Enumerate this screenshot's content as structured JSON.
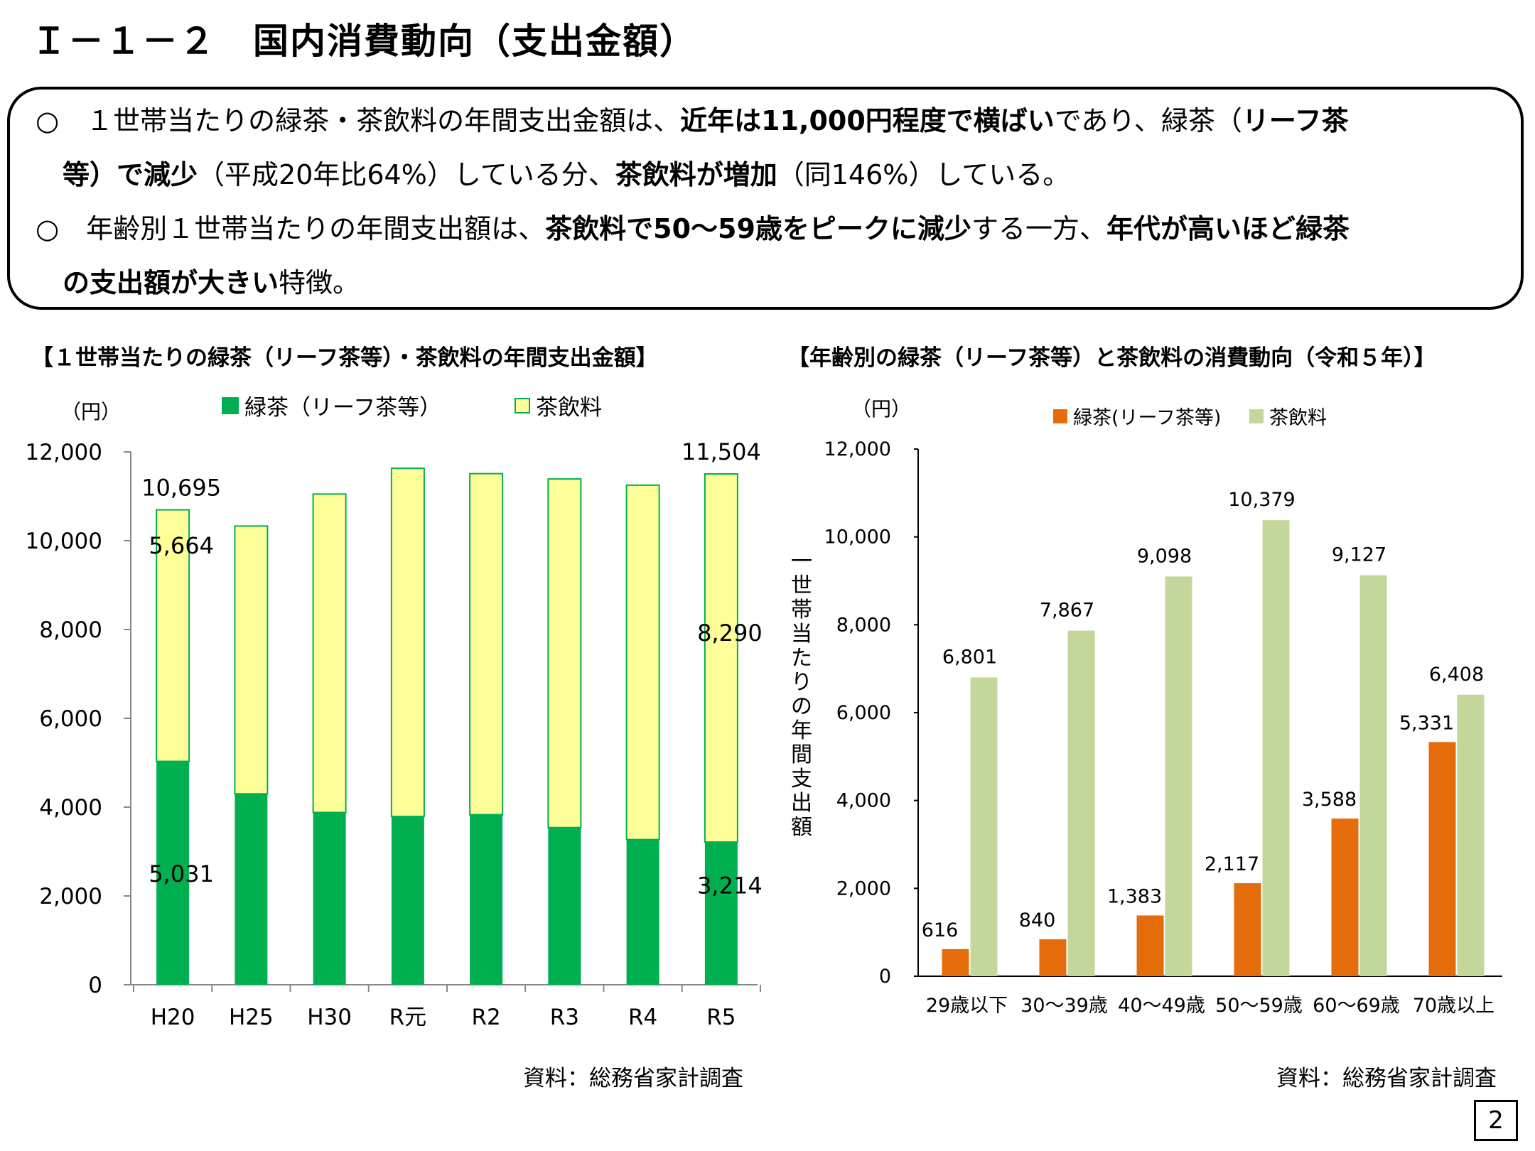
{
  "header": {
    "title": "Ｉ－１－２　国内消費動向（支出金額）"
  },
  "summary": {
    "line1": {
      "p1": "○　１世帯当たりの緑茶・茶飲料の年間支出金額は、",
      "b1": "近年は11,000円程度で横ばい",
      "p2": "であり、緑茶（",
      "b2": "リーフ茶"
    },
    "line2": {
      "b1": "等）で減少",
      "p1": "（平成20年比64%）している分、",
      "b2": "茶飲料が増加",
      "p2": "（同146%）している。"
    },
    "line3": {
      "p1": "○　年齢別１世帯当たりの年間支出額は、",
      "b1": "茶飲料で50～59歳をピークに減少",
      "p2": "する一方、",
      "b2": "年代が高いほど緑茶"
    },
    "line4": {
      "b1": "の支出額が大きい",
      "p1": "特徴。"
    }
  },
  "left_chart": {
    "panel_title": "【１世帯当たりの緑茶（リーフ茶等）・茶飲料の年間支出金額】",
    "unit": "（円）",
    "source": "資料：総務省家計調査"
  },
  "right_chart": {
    "panel_title": "【年齢別の緑茶（リーフ茶等）と茶飲料の消費動向（令和５年）】",
    "unit": "（円）",
    "source": "資料：総務省家計調査",
    "y_title": "一世帯当たりの年間支出額"
  },
  "footer": {
    "page_number": "2"
  },
  "chart_data": [
    {
      "type": "bar",
      "stacked": true,
      "title": "【１世帯当たりの緑茶（リーフ茶等）・茶飲料の年間支出金額】",
      "categories": [
        "H20",
        "H25",
        "H30",
        "R元",
        "R2",
        "R3",
        "R4",
        "R5"
      ],
      "series": [
        {
          "name": "緑茶（リーフ茶等）",
          "color": "#00b050",
          "values": [
            5031,
            4300,
            3880,
            3790,
            3830,
            3540,
            3270,
            3214
          ]
        },
        {
          "name": "茶飲料",
          "color": "#ffff99",
          "values": [
            5664,
            6030,
            7170,
            7840,
            7680,
            7850,
            7980,
            8290
          ]
        }
      ],
      "totals": [
        10695,
        10330,
        11050,
        11630,
        11510,
        11390,
        11250,
        11504
      ],
      "data_labels": {
        "totals": [
          {
            "index": 0,
            "text": "10,695"
          },
          {
            "index": 7,
            "text": "11,504"
          }
        ],
        "茶飲料": [
          {
            "index": 0,
            "text": "5,664"
          },
          {
            "index": 7,
            "text": "8,290"
          }
        ],
        "緑茶（リーフ茶等）": [
          {
            "index": 0,
            "text": "5,031"
          },
          {
            "index": 7,
            "text": "3,214"
          }
        ]
      },
      "yticks": [
        "0",
        "2,000",
        "4,000",
        "6,000",
        "8,000",
        "10,000",
        "12,000"
      ],
      "ylim": [
        0,
        12000
      ],
      "ylabel": "（円）",
      "legend_position": "top"
    },
    {
      "type": "bar",
      "title": "【年齢別の緑茶（リーフ茶等）と茶飲料の消費動向（令和５年）】",
      "categories": [
        "29歳以下",
        "30～39歳",
        "40～49歳",
        "50～59歳",
        "60～69歳",
        "70歳以上"
      ],
      "series": [
        {
          "name": "緑茶(リーフ茶等)",
          "color": "#e46c0a",
          "values": [
            616,
            840,
            1383,
            2117,
            3588,
            5331
          ],
          "labels": [
            "616",
            "840",
            "1,383",
            "2,117",
            "3,588",
            "5,331"
          ]
        },
        {
          "name": "茶飲料",
          "color": "#c4d79b",
          "values": [
            6801,
            7867,
            9098,
            10379,
            9127,
            6408
          ],
          "labels": [
            "6,801",
            "7,867",
            "9,098",
            "10,379",
            "9,127",
            "6,408"
          ]
        }
      ],
      "yticks": [
        "0",
        "2,000",
        "4,000",
        "6,000",
        "8,000",
        "10,000",
        "12,000"
      ],
      "ylim": [
        0,
        12000
      ],
      "ylabel": "一世帯当たりの年間支出額",
      "legend_position": "top"
    }
  ]
}
